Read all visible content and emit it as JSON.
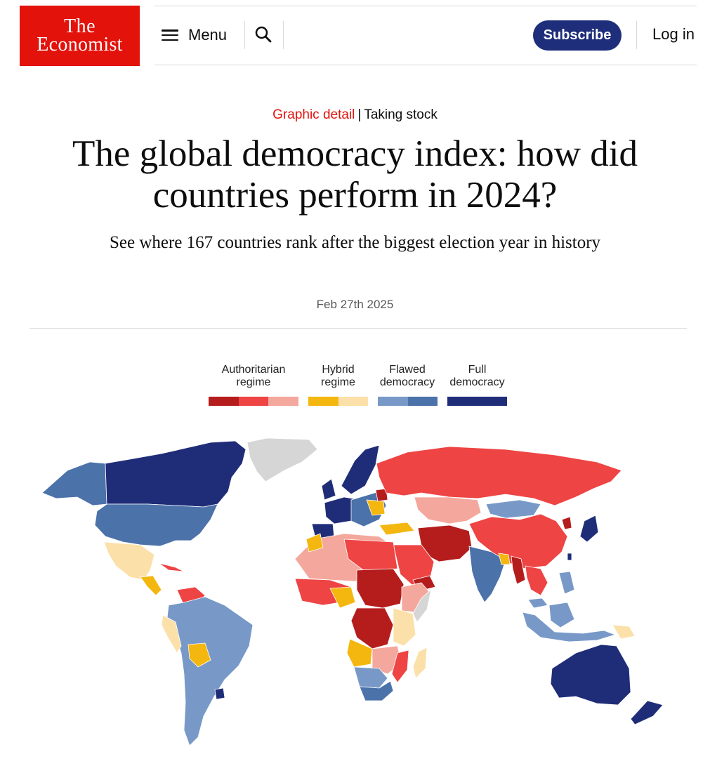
{
  "brand": {
    "line1": "The",
    "line2": "Economist",
    "color": "#e3120b"
  },
  "nav": {
    "menu_label": "Menu",
    "subscribe_label": "Subscribe",
    "login_label": "Log in"
  },
  "icons": {
    "menu": "hamburger-icon",
    "search": "search-icon"
  },
  "article": {
    "section": "Graphic detail",
    "separator": "|",
    "series": "Taking stock",
    "title": "The global democracy index: how did countries perform in 2024?",
    "standfirst": "See where 167 countries rank after the biggest election year in history",
    "date": "Feb 27th 2025"
  },
  "legend": [
    {
      "line1": "Authoritarian",
      "line2": "regime",
      "colors": [
        "#b51d1d",
        "#ee4444",
        "#f4a79c"
      ]
    },
    {
      "line1": "Hybrid",
      "line2": "regime",
      "colors": [
        "#f4b70f",
        "#fbe1a9"
      ]
    },
    {
      "line1": "Flawed",
      "line2": "democracy",
      "colors": [
        "#7899c8",
        "#4c72aa"
      ]
    },
    {
      "line1": "Full",
      "line2": "democracy",
      "colors": [
        "#1f2d78"
      ]
    }
  ],
  "map_colors": {
    "authoritarian_dark": "#b51d1d",
    "authoritarian_mid": "#ee4444",
    "authoritarian_light": "#f4a79c",
    "hybrid_dark": "#f4b70f",
    "hybrid_light": "#fbe1a9",
    "flawed_light": "#7899c8",
    "flawed_dark": "#4c72aa",
    "full": "#1f2d78",
    "no_data": "#d6d6d6"
  }
}
